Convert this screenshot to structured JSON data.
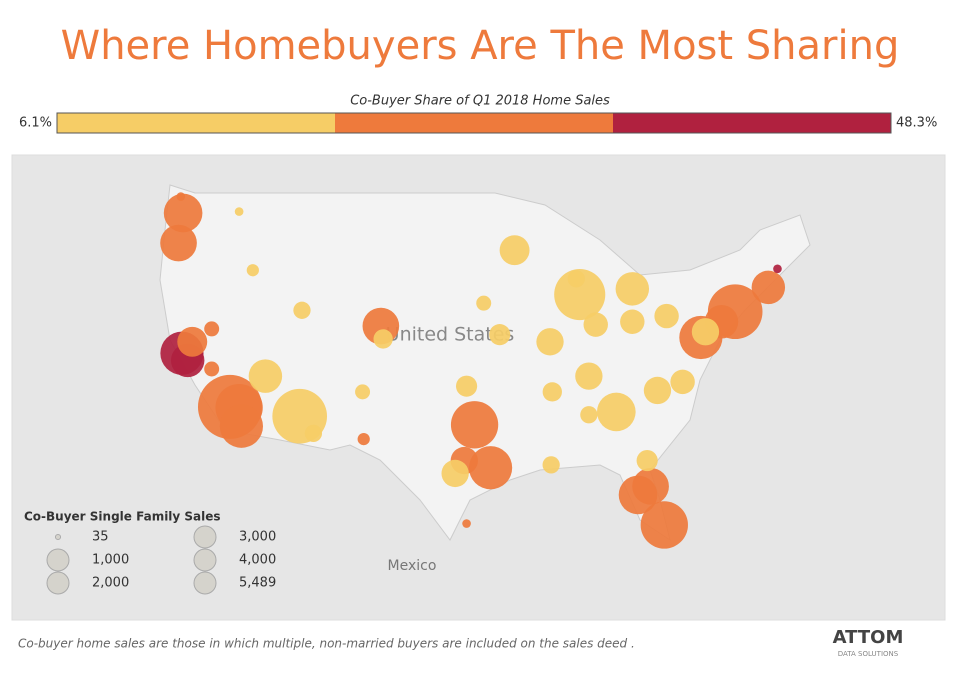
{
  "title": "Where Homebuyers Are The Most Sharing",
  "color_legend": {
    "title": "Co-Buyer Share of Q1 2018 Home Sales",
    "min": 6.1,
    "max": 48.3,
    "min_label": "6.1%",
    "max_label": "48.3%",
    "colors": [
      "#f6cd66",
      "#ee7a3c",
      "#b0213f"
    ]
  },
  "map_labels": [
    "United States",
    "Mexico"
  ],
  "size_legend": {
    "title": "Co-Buyer Single Family Sales",
    "values": [
      35,
      {
        "value": 1000,
        "label": "1,000"
      },
      {
        "value": 2000,
        "label": "2,000"
      },
      {
        "value": 3000,
        "label": "3,000"
      },
      {
        "value": 4000,
        "label": "4,000"
      },
      {
        "value": 5489,
        "label": "5,489"
      }
    ]
  },
  "bubbles": {
    "lon": [
      -122.3,
      -122.7,
      -122.5,
      -122.4,
      -121.9,
      -121.5,
      -119.8,
      -118.2,
      -117.4,
      -117.2,
      -115.1,
      -112.1,
      -110.9,
      -111.9,
      -116.2,
      -119.8,
      -105.0,
      -104.8,
      -106.6,
      -96.8,
      -95.4,
      -97.7,
      -98.5,
      -97.5,
      -94.6,
      -93.3,
      -87.6,
      -87.9,
      -83.0,
      -86.2,
      -83.0,
      -90.2,
      -86.8,
      -84.4,
      -80.8,
      -78.6,
      -77.0,
      -76.6,
      -75.2,
      -74.0,
      -71.1,
      -70.3,
      -80.0,
      -82.5,
      -81.4,
      -81.7,
      -80.2,
      -90.1,
      -90.0,
      -86.8,
      -117.4,
      -106.5,
      -96.0,
      -97.5
    ],
    "lat": [
      47.6,
      45.5,
      48.75,
      37.8,
      37.3,
      38.6,
      36.7,
      34.05,
      34.0,
      32.7,
      36.2,
      33.4,
      32.2,
      40.8,
      43.6,
      39.5,
      39.7,
      38.8,
      35.1,
      32.8,
      29.8,
      30.3,
      29.4,
      35.5,
      39.1,
      45.0,
      41.9,
      43.0,
      42.3,
      39.8,
      40.0,
      38.6,
      36.2,
      33.7,
      35.2,
      35.8,
      38.9,
      39.3,
      40.0,
      40.7,
      42.4,
      43.7,
      40.4,
      27.9,
      28.5,
      30.3,
      25.8,
      30.0,
      35.1,
      33.5,
      47.7,
      31.8,
      41.3,
      25.9
    ],
    "sales": [
      2000,
      1800,
      100,
      2500,
      1500,
      1200,
      300,
      5489,
      3000,
      2500,
      1500,
      4000,
      400,
      400,
      200,
      300,
      1800,
      500,
      300,
      3000,
      2500,
      1000,
      1000,
      600,
      600,
      1200,
      3500,
      400,
      1500,
      800,
      800,
      1000,
      1000,
      2000,
      1000,
      800,
      2500,
      1000,
      1500,
      4000,
      1500,
      100,
      800,
      2000,
      1800,
      600,
      3000,
      400,
      500,
      400,
      100,
      200,
      300,
      100
    ],
    "share": [
      25,
      28,
      22,
      45,
      46,
      32,
      30,
      33,
      32,
      30,
      18,
      18,
      15,
      15,
      12,
      30,
      33,
      18,
      14,
      30,
      30,
      28,
      15,
      14,
      14,
      14,
      14,
      14,
      14,
      14,
      14,
      14,
      14,
      14,
      14,
      14,
      30,
      14,
      28,
      30,
      32,
      40,
      14,
      25,
      30,
      14,
      30,
      14,
      14,
      14,
      14,
      30,
      14,
      32
    ]
  },
  "footnote": "Co-buyer home sales are those in which multiple, non-married buyers are included on the sales deed .",
  "logo": {
    "name": "ATTOM",
    "tagline": "DATA SOLUTIONS"
  }
}
